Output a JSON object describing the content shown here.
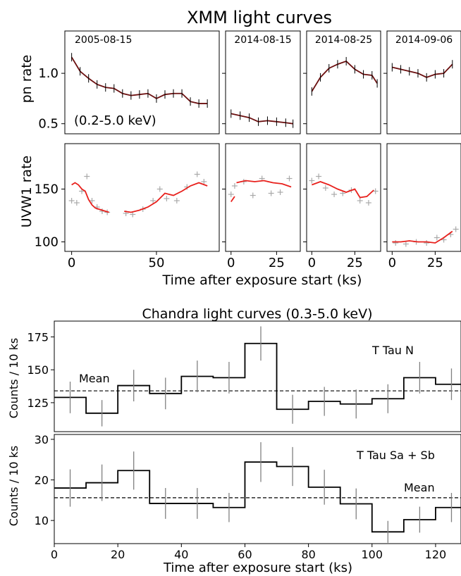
{
  "chart_data": [
    {
      "type": "line",
      "title": "XMM light curves",
      "ylabel": "pn rate",
      "xlabel": "Time after exposure start (ks)",
      "annotation": "(0.2-5.0 keV)",
      "ylim": [
        0.4,
        1.42
      ],
      "yticks": [
        "0.5",
        "1.0"
      ],
      "panels": [
        {
          "label": "2005-08-15",
          "xlim": [
            -4,
            87
          ],
          "xticks": [
            "0",
            "50"
          ],
          "x": [
            0,
            5,
            10,
            15,
            20,
            25,
            30,
            35,
            40,
            45,
            50,
            55,
            60,
            65,
            70,
            75,
            80
          ],
          "y": [
            1.16,
            1.02,
            0.95,
            0.89,
            0.86,
            0.85,
            0.8,
            0.78,
            0.79,
            0.8,
            0.75,
            0.79,
            0.8,
            0.8,
            0.72,
            0.7,
            0.7
          ]
        },
        {
          "label": "2014-08-15",
          "xlim": [
            -3,
            38
          ],
          "xticks": [
            "0",
            "25"
          ],
          "x": [
            0,
            5,
            10,
            15,
            20,
            25,
            30,
            34
          ],
          "y": [
            0.6,
            0.58,
            0.56,
            0.52,
            0.53,
            0.52,
            0.51,
            0.5
          ]
        },
        {
          "label": "2014-08-25",
          "xlim": [
            -3,
            40
          ],
          "xticks": [
            "0",
            "25"
          ],
          "x": [
            0,
            5,
            10,
            15,
            20,
            25,
            30,
            35,
            38
          ],
          "y": [
            0.82,
            0.96,
            1.05,
            1.09,
            1.12,
            1.04,
            0.99,
            0.98,
            0.9
          ]
        },
        {
          "label": "2014-09-06",
          "xlim": [
            -3,
            40
          ],
          "xticks": [
            "0",
            "25"
          ],
          "x": [
            0,
            5,
            10,
            15,
            20,
            25,
            30,
            35
          ],
          "y": [
            1.06,
            1.04,
            1.02,
            1.0,
            0.96,
            0.99,
            1.0,
            1.09
          ]
        }
      ]
    },
    {
      "type": "scatter",
      "ylabel": "UVW1 rate",
      "xlabel": "Time after exposure start (ks)",
      "ylim": [
        91,
        193
      ],
      "yticks": [
        "100",
        "150"
      ],
      "series": [
        {
          "color": "#e8201c"
        },
        {
          "color": "#a9a9a9"
        }
      ],
      "panels": [
        {
          "xlim": [
            -4,
            87
          ],
          "xticks": [
            "0",
            "50"
          ],
          "red_segments": [
            {
              "x": [
                0,
                2,
                4,
                6,
                8,
                10,
                12,
                14,
                16,
                18,
                20,
                22
              ],
              "y": [
                154,
                156,
                154,
                150,
                148,
                140,
                135,
                132,
                131,
                130,
                129,
                128
              ]
            },
            {
              "x": [
                31,
                35,
                40,
                45,
                50,
                55,
                60,
                65,
                70,
                75,
                80
              ],
              "y": [
                129,
                128,
                130,
                133,
                138,
                146,
                144,
                148,
                153,
                156,
                153
              ]
            }
          ],
          "gray": {
            "x": [
              0,
              3,
              6,
              9,
              12,
              15,
              18,
              21,
              32,
              36,
              42,
              48,
              52,
              56,
              62,
              68,
              74,
              78
            ],
            "y": [
              139,
              137,
              148,
              162,
              139,
              133,
              129,
              128,
              127,
              126,
              131,
              139,
              150,
              141,
              139,
              152,
              164,
              157
            ]
          }
        },
        {
          "xlim": [
            -3,
            38
          ],
          "xticks": [
            "0",
            "25"
          ],
          "red_segments": [
            {
              "x": [
                0,
                2
              ],
              "y": [
                138,
                143
              ]
            },
            {
              "x": [
                3,
                8,
                13,
                18,
                23,
                28,
                33
              ],
              "y": [
                156,
                158,
                157,
                158,
                156,
                155,
                152
              ]
            }
          ],
          "gray": {
            "x": [
              0,
              2,
              7,
              12,
              17,
              22,
              27,
              32
            ],
            "y": [
              145,
              153,
              157,
              144,
              160,
              146,
              147,
              160
            ]
          }
        },
        {
          "xlim": [
            -3,
            40
          ],
          "xticks": [
            "0",
            "25"
          ],
          "red_segments": [
            {
              "x": [
                0,
                5,
                10,
                15,
                20,
                25,
                28,
                32,
                36
              ],
              "y": [
                154,
                157,
                154,
                150,
                147,
                150,
                142,
                143,
                149
              ]
            }
          ],
          "gray": {
            "x": [
              0,
              4,
              8,
              13,
              18,
              23,
              28,
              33,
              37
            ],
            "y": [
              158,
              162,
              151,
              145,
              146,
              149,
              139,
              137,
              148
            ]
          }
        },
        {
          "xlim": [
            -3,
            40
          ],
          "xticks": [
            "0",
            "25"
          ],
          "red_segments": [
            {
              "x": [
                0,
                5,
                10,
                15,
                20,
                25,
                30,
                35
              ],
              "y": [
                100,
                100,
                101,
                100,
                100,
                99,
                104,
                110
              ]
            }
          ],
          "gray": {
            "x": [
              2,
              8,
              14,
              20,
              26,
              30,
              34,
              37
            ],
            "y": [
              99,
              98,
              100,
              99,
              104,
              102,
              107,
              112
            ]
          }
        }
      ]
    },
    {
      "type": "line",
      "title": "Chandra light curves (0.3-5.0 keV)",
      "ylabel": "Counts / 10 ks",
      "xlabel": "Time after exposure start (ks)",
      "label": "T Tau N",
      "mean_label": "Mean",
      "mean": 134,
      "xlim": [
        0,
        128
      ],
      "ylim": [
        103,
        187
      ],
      "yticks": [
        "125",
        "150",
        "175"
      ],
      "x": [
        0,
        10,
        20,
        30,
        40,
        50,
        60,
        70,
        80,
        90,
        100,
        110,
        120
      ],
      "values": [
        129,
        117,
        138,
        132,
        145,
        144,
        170,
        120,
        126,
        124,
        128,
        144,
        139
      ],
      "errors": [
        12,
        10,
        12,
        12,
        12,
        12,
        13,
        11,
        11,
        11,
        11,
        12,
        12
      ]
    },
    {
      "type": "line",
      "ylabel": "Counts / 10 ks",
      "xlabel": "Time after exposure start (ks)",
      "label": "T Tau Sa + Sb",
      "mean_label": "Mean",
      "mean": 15.6,
      "xlim": [
        0,
        128
      ],
      "ylim": [
        4.3,
        31.2
      ],
      "xticks": [
        "0",
        "20",
        "40",
        "60",
        "80",
        "100",
        "120"
      ],
      "yticks": [
        "10",
        "20",
        "30"
      ],
      "x": [
        0,
        10,
        20,
        30,
        40,
        50,
        60,
        70,
        80,
        90,
        100,
        110,
        120
      ],
      "values": [
        18,
        19.3,
        22.3,
        14.2,
        14.2,
        13.2,
        24.4,
        23.3,
        18.2,
        14.1,
        7.2,
        10.2,
        13.2
      ],
      "errors": [
        4.6,
        4.5,
        4.7,
        3.8,
        3.8,
        3.6,
        4.9,
        4.8,
        4.3,
        3.8,
        2.7,
        3.2,
        3.6
      ]
    }
  ]
}
